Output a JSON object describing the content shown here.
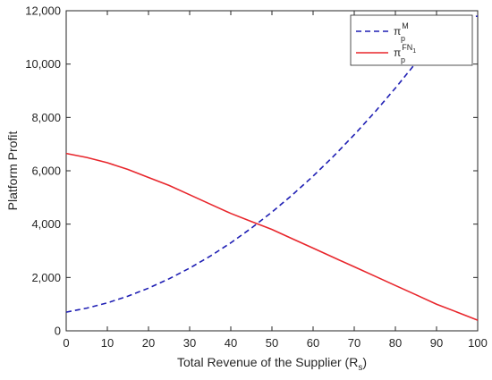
{
  "chart_data": {
    "type": "line",
    "xlabel": "Total Revenue of the Supplier (R",
    "xlabel_subscript": "s",
    "xlabel_suffix": ")",
    "ylabel": "Platform Profit",
    "xlim": [
      0,
      100
    ],
    "ylim": [
      0,
      12000
    ],
    "xticks": [
      0,
      10,
      20,
      30,
      40,
      50,
      60,
      70,
      80,
      90,
      100
    ],
    "xtick_labels": [
      "0",
      "10",
      "20",
      "30",
      "40",
      "50",
      "60",
      "70",
      "80",
      "90",
      "100"
    ],
    "yticks": [
      0,
      2000,
      4000,
      6000,
      8000,
      10000,
      12000
    ],
    "ytick_labels": [
      "0",
      "2,000",
      "4,000",
      "6,000",
      "8,000",
      "10,000",
      "12,000"
    ],
    "grid": false,
    "legend_position": "top-right",
    "series": [
      {
        "name": "πpM",
        "legend_base": "π",
        "legend_sup": "M",
        "legend_sub": "p",
        "legend_sub2": "",
        "color": "#1f1fb4",
        "style": "dashed",
        "x": [
          0,
          5,
          10,
          15,
          20,
          25,
          30,
          35,
          40,
          45,
          50,
          55,
          60,
          65,
          70,
          75,
          80,
          85,
          90,
          95,
          100
        ],
        "y": [
          700,
          850,
          1050,
          1300,
          1600,
          1950,
          2350,
          2800,
          3300,
          3850,
          4450,
          5100,
          5800,
          6550,
          7350,
          8200,
          9100,
          10050,
          11050,
          11700,
          11800
        ]
      },
      {
        "name": "πpFN1",
        "legend_base": "π",
        "legend_sup": "FN",
        "legend_sub": "p",
        "legend_sub2": "1",
        "color": "#e8262c",
        "style": "solid",
        "x": [
          0,
          5,
          10,
          15,
          20,
          25,
          30,
          35,
          40,
          45,
          50,
          55,
          60,
          65,
          70,
          75,
          80,
          85,
          90,
          95,
          100
        ],
        "y": [
          6650,
          6500,
          6300,
          6050,
          5750,
          5450,
          5100,
          4750,
          4400,
          4100,
          3800,
          3450,
          3100,
          2750,
          2400,
          2050,
          1700,
          1350,
          1000,
          700,
          400
        ]
      }
    ]
  }
}
